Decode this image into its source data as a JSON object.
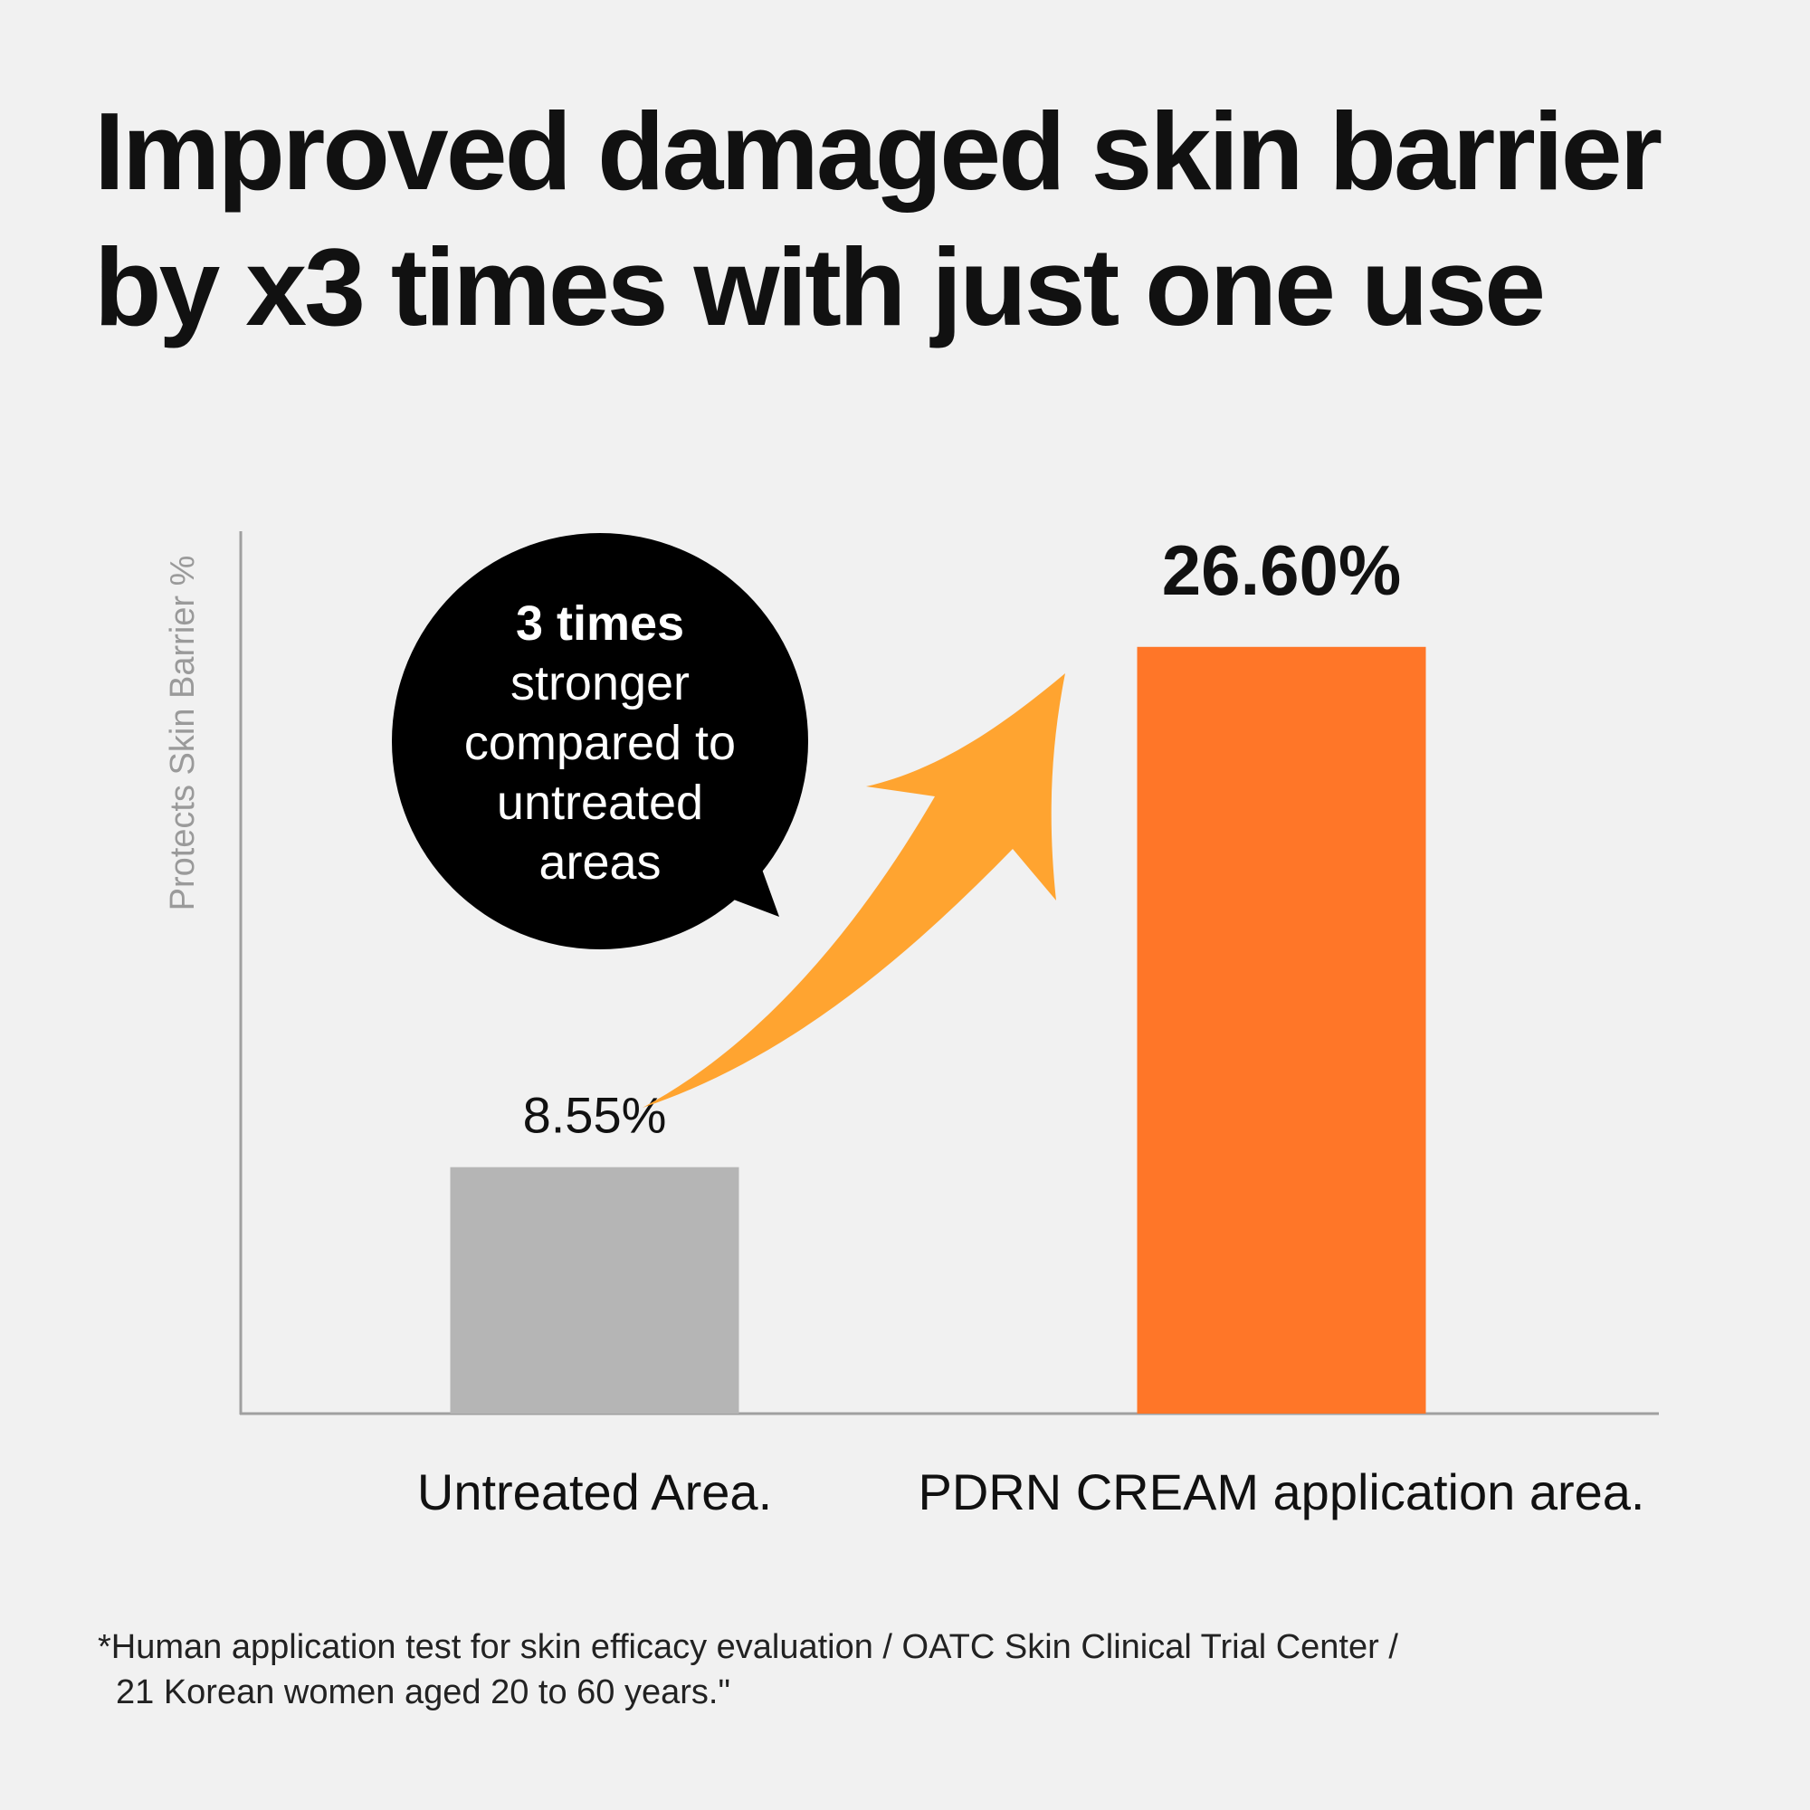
{
  "title": {
    "line1": "Improved damaged skin barrier",
    "line2": "by x3 times with just one use"
  },
  "chart_data": {
    "type": "bar",
    "categories": [
      "Untreated Area.",
      "PDRN CREAM application area."
    ],
    "values": [
      8.55,
      26.6
    ],
    "value_labels": [
      "8.55%",
      "26.60%"
    ],
    "ylabel": "Protects Skin Barrier %",
    "ylim": [
      0,
      30
    ],
    "grid": false,
    "colors": [
      "#b5b5b5",
      "#ff7628"
    ],
    "arrow_color": "#ffa430"
  },
  "callout": {
    "lines": [
      "3 times",
      "stronger",
      "compared to",
      "untreated",
      "areas"
    ]
  },
  "footer": {
    "line1": "*Human application test for skin efficacy evaluation / OATC Skin Clinical Trial Center /",
    "line2": "21 Korean women aged 20 to 60 years.\""
  }
}
